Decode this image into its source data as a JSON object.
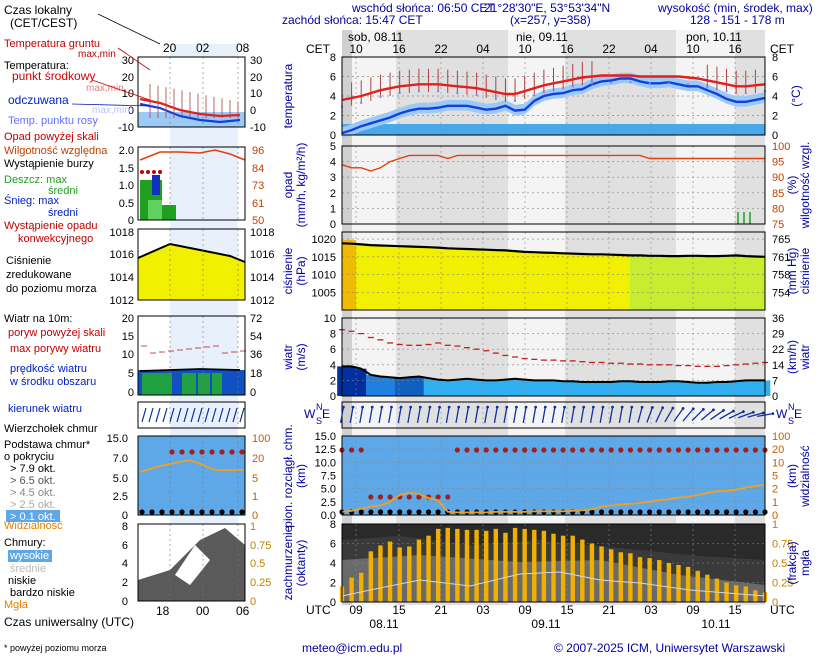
{
  "header": {
    "sunrise": "wschód słońca: 06:50 CET",
    "sunset": "zachód słońca: 15:47 CET",
    "coords": "21°28'30\"E, 53°53'34\"N",
    "grid": "(x=257, y=358)",
    "elev_title": "wysokość (min, środek, max)",
    "elev_values": "128 - 151 - 178 m"
  },
  "days_top": [
    "sob, 08.11",
    "nie, 09.11",
    "pon, 10.11"
  ],
  "days_bottom": [
    "08.11",
    "09.11",
    "10.11"
  ],
  "cet_label": "CET",
  "utc_label": "UTC",
  "hours_top": [
    "10",
    "16",
    "22",
    "04",
    "10",
    "16",
    "22",
    "04",
    "10",
    "16"
  ],
  "hours_bottom": [
    "09",
    "15",
    "21",
    "03",
    "09",
    "15",
    "21",
    "03",
    "09",
    "15"
  ],
  "legend": {
    "local_time": "Czas lokalny",
    "local_time_sub": "(CET/CEST)",
    "local_ticks": [
      "20",
      "02",
      "08"
    ],
    "utc_time": "Czas uniwersalny (UTC)",
    "utc_ticks": [
      "18",
      "00",
      "06"
    ],
    "t_ground": "Temperatura gruntu",
    "t_maxmin_a": "max,min",
    "t_temperature": "Temperatura:",
    "t_mid": "punkt środkowy",
    "t_maxmin_b": "max,min",
    "t_felt": "odczuwana",
    "t_maxmin_c": "max,min",
    "t_dew": "Temp. punktu rosy",
    "p_above": "Opad powyżej skali",
    "p_humidity": "Wilgotność względna",
    "p_storm": "Wystąpienie burzy",
    "p_rain": "Deszcz: max",
    "p_rain_avg": "średni",
    "p_snow": "Śnieg: max",
    "p_snow_avg": "średni",
    "p_conv_1": "Wystąpienie opadu",
    "p_conv_2": "konwekcyjnego",
    "pr_1": "Ciśnienie",
    "pr_2": "zredukowane",
    "pr_3": "do poziomu morza",
    "w_title": "Wiatr na 10m:",
    "w_gust_above": "poryw powyżej skali",
    "w_gust": "max porywy wiatru",
    "w_speed_1": "prędkość wiatru",
    "w_speed_2": "w środku obszaru",
    "wd_title": "kierunek wiatru",
    "c_top": "Wierzchołek chmur",
    "c_base_1": "Podstawa chmur*",
    "c_base_2": "o pokryciu",
    "c_okt": [
      "> 7.9 okt.",
      "> 6.5 okt.",
      "> 4.5 okt.",
      "> 2.5 okt.",
      "> 0.1 okt."
    ],
    "c_vis": "Widzialność",
    "cl_title": "Chmury:",
    "cl_high": "wysokie",
    "cl_mid": "średnie",
    "cl_low": "niskie",
    "cl_vlow": "bardzo niskie",
    "cl_fog": "Mgła"
  },
  "footer": {
    "note": "* powyżej poziomu morza",
    "email": "meteo@icm.edu.pl",
    "copyright": "© 2007-2025 ICM, Uniwersytet Warszawski"
  },
  "panel_labels": {
    "temp_l": "temperatura",
    "temp_r": "(°C)",
    "prec_l1": "opad",
    "prec_l2": "(mm/h, kg/m²/h)",
    "prec_r1": "(%)",
    "prec_r2": "wilgotność wzgl.",
    "pres_l1": "ciśnienie",
    "pres_l2": "(hPa)",
    "pres_r1": "(mm Hg)",
    "pres_r2": "ciśnienie",
    "wind_l1": "wiatr",
    "wind_l2": "(m/s)",
    "wind_r1": "(km/h)",
    "wind_r2": "wiatr",
    "wdir_l": "W",
    "wdir_r": "E",
    "wdir_n": "N",
    "wdir_s": "S",
    "cld_l1": "pion. rozciągł. chm.",
    "cld_l2": "(km)",
    "cld_r1": "(km)",
    "cld_r2": "widzialność",
    "cov_l1": "zachmurzenie",
    "cov_l2": "(oktanty)",
    "cov_r1": "(frakcja)",
    "cov_r2": "mgła"
  },
  "chart_data": [
    {
      "type": "line",
      "id": "temperature",
      "ylim": [
        0,
        8
      ],
      "yticks": [
        0,
        2,
        4,
        6,
        8
      ],
      "series": [
        {
          "values": [
            3.6,
            3.8,
            4.0,
            4.3,
            4.6,
            4.8,
            5.0,
            5.1,
            5.2,
            5.2,
            5.2,
            5.1,
            5.0,
            4.9,
            4.8,
            4.6,
            4.4,
            4.2,
            4.2,
            4.5,
            4.8,
            5.1,
            5.3,
            5.5,
            5.7,
            5.9,
            6.0,
            6.1,
            6.1,
            6.1,
            6.1,
            6.0,
            6.0,
            6.0,
            6.0,
            6.0,
            5.9,
            5.8,
            5.6,
            5.4,
            5.2,
            5.0,
            5.0,
            5.1,
            5.2
          ]
        },
        {
          "values": [
            0.2,
            0.5,
            0.9,
            1.2,
            1.5,
            1.8,
            2.2,
            2.5,
            2.7,
            2.7,
            2.8,
            3.0,
            3.0,
            3.0,
            2.8,
            2.6,
            2.7,
            3.0,
            2.5,
            2.6,
            3.5,
            4.0,
            4.2,
            4.3,
            4.6,
            4.7,
            5.2,
            5.5,
            5.6,
            5.8,
            5.8,
            5.5,
            5.3,
            5.3,
            5.4,
            5.2,
            5.0,
            5.0,
            4.6,
            4.2,
            3.7,
            3.4,
            3.4,
            3.6,
            3.8
          ]
        }
      ]
    },
    {
      "type": "line",
      "id": "precip_humidity",
      "ylim": [
        0,
        5
      ],
      "yticks": [
        0,
        1,
        2,
        3,
        4,
        5
      ],
      "y2lim": [
        75,
        100
      ],
      "y2ticks": [
        75,
        80,
        85,
        90,
        95,
        100
      ],
      "series": [
        {
          "values": [
            94,
            93,
            93,
            92,
            93,
            95,
            96,
            97,
            97,
            97,
            97,
            96,
            97,
            97,
            97,
            97,
            97,
            97,
            97,
            97,
            97,
            97,
            97,
            97,
            97,
            97,
            97,
            97,
            97,
            97,
            97,
            97,
            96,
            96,
            96,
            96,
            96,
            96,
            96,
            96,
            96,
            96,
            96,
            96,
            96
          ]
        }
      ]
    },
    {
      "type": "area",
      "id": "pressure",
      "ylim": [
        1000,
        1022
      ],
      "yticks": [
        1005,
        1010,
        1015,
        1020
      ],
      "y2ticks": [
        754,
        758,
        761,
        765
      ],
      "series": [
        {
          "values": [
            1018.8,
            1018.7,
            1018.5,
            1018.3,
            1018.2,
            1018.1,
            1018.0,
            1017.9,
            1017.8,
            1017.7,
            1017.6,
            1017.4,
            1017.3,
            1017.2,
            1017.1,
            1017.0,
            1016.9,
            1016.8,
            1016.6,
            1016.4,
            1016.3,
            1016.2,
            1016.1,
            1016.0,
            1015.9,
            1015.8,
            1015.7,
            1015.7,
            1015.6,
            1015.5,
            1015.4,
            1015.4,
            1015.3,
            1015.3,
            1015.2,
            1015.2,
            1015.3,
            1015.3,
            1015.2,
            1015.2,
            1015.3,
            1015.4,
            1015.2,
            1015.1,
            1015.0
          ]
        }
      ]
    },
    {
      "type": "line",
      "id": "wind",
      "ylim": [
        0,
        10
      ],
      "yticks": [
        0,
        2,
        4,
        6,
        8,
        10
      ],
      "y2ticks": [
        0,
        7,
        14,
        22,
        29,
        36
      ],
      "series": [
        {
          "values": [
            3.8,
            3.8,
            3.5,
            2.7,
            2.5,
            2.4,
            2.3,
            2.4,
            2.5,
            2.3,
            2.1,
            2.0,
            2.1,
            2.2,
            2.1,
            2.0,
            2.0,
            2.1,
            2.2,
            2.1,
            2.0,
            2.0,
            2.0,
            1.9,
            1.9,
            1.8,
            1.8,
            1.8,
            1.8,
            1.9,
            1.9,
            1.8,
            1.8,
            1.8,
            1.9,
            1.9,
            1.8,
            1.7,
            1.7,
            1.8,
            1.8,
            1.9,
            2.0,
            2.0,
            2.0
          ]
        },
        {
          "values": [
            8.5,
            8.3,
            8.0,
            7.5,
            7.2,
            6.8,
            6.6,
            6.5,
            6.5,
            6.6,
            6.8,
            6.5,
            6.4,
            6.2,
            6.0,
            5.8,
            5.5,
            5.2,
            5.0,
            4.8,
            4.7,
            4.6,
            4.6,
            4.5,
            4.5,
            4.4,
            4.3,
            4.3,
            4.2,
            4.2,
            4.1,
            4.1,
            4.0,
            4.0,
            4.0,
            3.9,
            3.9,
            3.8,
            3.8,
            3.8,
            3.9,
            4.0,
            4.1,
            4.2,
            4.3
          ]
        }
      ]
    },
    {
      "type": "line",
      "id": "cloud_visibility",
      "ylim": [
        0,
        15
      ],
      "yticks": [
        0,
        2.5,
        5,
        7.5,
        10,
        12.5,
        15
      ],
      "y2ticks": [
        0,
        1,
        2,
        5,
        10,
        20,
        100
      ],
      "series": [
        {
          "values": [
            0.6,
            0.8,
            1.2,
            1.6,
            1.8,
            2.5,
            3.8,
            4.2,
            4.0,
            3.2,
            2.8,
            0.6,
            0.5,
            0.5,
            0.5,
            0.5,
            0.6,
            0.6,
            0.6,
            0.6,
            0.7,
            0.7,
            0.7,
            0.7,
            0.8,
            0.9,
            1.1,
            1.6,
            1.8,
            2.0,
            2.1,
            2.3,
            2.5,
            2.8,
            3.0,
            3.3,
            3.5,
            3.8,
            4.2,
            4.5,
            4.6,
            4.8,
            5.2,
            5.5,
            5.8
          ]
        }
      ]
    },
    {
      "type": "bar",
      "id": "cloud_cover",
      "ylim": [
        0,
        8
      ],
      "yticks": [
        0,
        2,
        4,
        6,
        8
      ],
      "y2ticks": [
        0,
        0.25,
        0.5,
        0.75,
        1
      ],
      "values": [
        1.6,
        2.5,
        3.0,
        5.2,
        5.8,
        6.2,
        5.6,
        5.7,
        6.4,
        6.8,
        7.5,
        7.6,
        7.5,
        7.4,
        7.4,
        7.3,
        7.5,
        7.1,
        7.6,
        7.5,
        7.4,
        7.3,
        7.0,
        6.8,
        6.8,
        6.4,
        6.0,
        5.7,
        5.4,
        5.1,
        5.0,
        4.6,
        4.5,
        4.3,
        4.0,
        3.8,
        3.6,
        3.2,
        2.8,
        2.4,
        2.0,
        1.7,
        1.6,
        1.2,
        1.0
      ]
    }
  ]
}
